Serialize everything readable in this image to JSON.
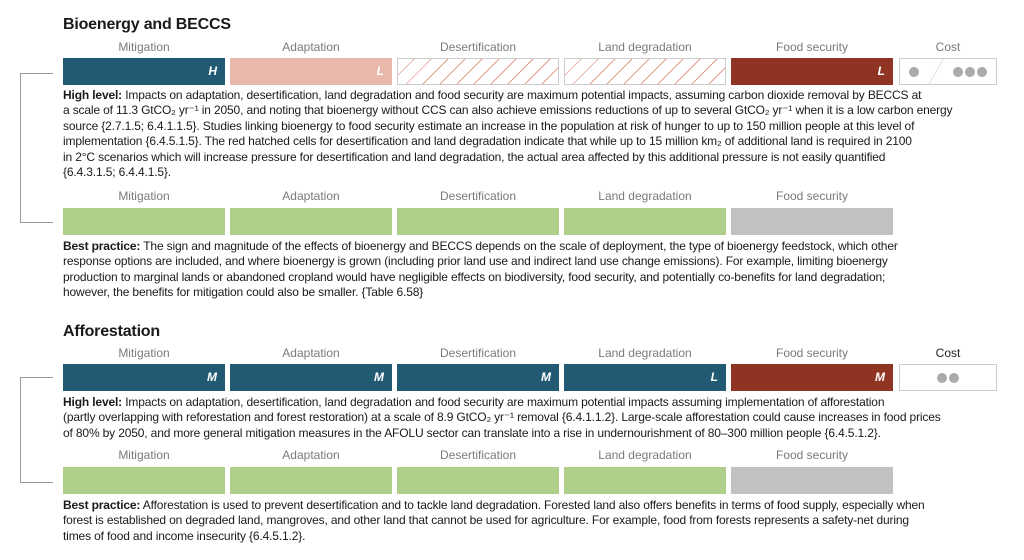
{
  "colors": {
    "high_mitigation": "#235a73",
    "low_adaptation": "#e8b9ab",
    "food_security_negative": "#8f3323",
    "best_practice_positive": "#b0cf8a",
    "best_practice_neutral": "#c2c2c2"
  },
  "sections": [
    {
      "title": "Bioenergy and BECCS",
      "high": {
        "labels": [
          "Mitigation",
          "Adaptation",
          "Desertification",
          "Land degradation",
          "Food security",
          "Cost"
        ],
        "levels": [
          "H",
          "L",
          "",
          "",
          "L"
        ],
        "cost": "one-to-three dots",
        "prefix": "High level:",
        "lines": [
          "Impacts on adaptation, desertification, land degradation and food security are maximum potential impacts, assuming carbon dioxide removal by BECCS at",
          "a scale of 11.3 GtCO₂ yr⁻¹ in 2050, and noting that bioenergy without CCS can also achieve emissions reductions of up to several GtCO₂ yr⁻¹ when it is a low carbon energy",
          "source {2.7.1.5; 6.4.1.1.5}. Studies linking bioenergy to food security estimate an increase in the population at risk of hunger to up to 150 million people at this level of",
          "implementation {6.4.5.1.5}. The red hatched cells for desertification and land degradation indicate that while up to 15 million km₂ of additional land is required in 2100",
          "in 2°C scenarios which will increase pressure for desertification and land degradation, the actual area affected by this additional pressure is not easily quantified",
          "{6.4.3.1.5; 6.4.4.1.5}."
        ]
      },
      "best": {
        "labels": [
          "Mitigation",
          "Adaptation",
          "Desertification",
          "Land degradation",
          "Food security"
        ],
        "prefix": "Best practice:",
        "lines": [
          "The sign and magnitude of the effects of bioenergy and BECCS depends on the scale of deployment, the type of bioenergy feedstock, which other",
          "response options are included, and where bioenergy is grown (including prior land use and indirect land use change emissions). For example, limiting bioenergy",
          "production to marginal lands or abandoned cropland would have negligible effects on biodiversity, food security, and potentially co-benefits for land degradation;",
          "however, the benefits for mitigation could also be smaller. {Table 6.58}"
        ]
      }
    },
    {
      "title": "Afforestation",
      "high": {
        "labels": [
          "Mitigation",
          "Adaptation",
          "Desertification",
          "Land degradation",
          "Food security",
          "Cost"
        ],
        "levels": [
          "M",
          "M",
          "M",
          "L",
          "M"
        ],
        "cost": "two dots",
        "prefix": "High level:",
        "lines": [
          "Impacts on adaptation, desertification, land degradation and food security are maximum potential impacts assuming implementation of afforestation",
          "(partly overlapping with reforestation and forest restoration) at a scale of 8.9 GtCO₂ yr⁻¹ removal {6.4.1.1.2}. Large-scale afforestation could cause increases in food prices",
          "of 80% by 2050, and more general mitigation measures in the AFOLU sector can translate into a rise in undernourishment of 80–300 million people {6.4.5.1.2}."
        ]
      },
      "best": {
        "labels": [
          "Mitigation",
          "Adaptation",
          "Desertification",
          "Land degradation",
          "Food security"
        ],
        "prefix": "Best practice:",
        "lines": [
          "Afforestation is used to prevent desertification and to tackle land degradation. Forested land also offers benefits in terms of food supply, especially when",
          "forest is established on degraded land, mangroves, and other land that cannot be used for agriculture. For example, food from forests represents a safety-net during",
          "times of food and income insecurity {6.4.5.1.2}."
        ]
      }
    }
  ]
}
